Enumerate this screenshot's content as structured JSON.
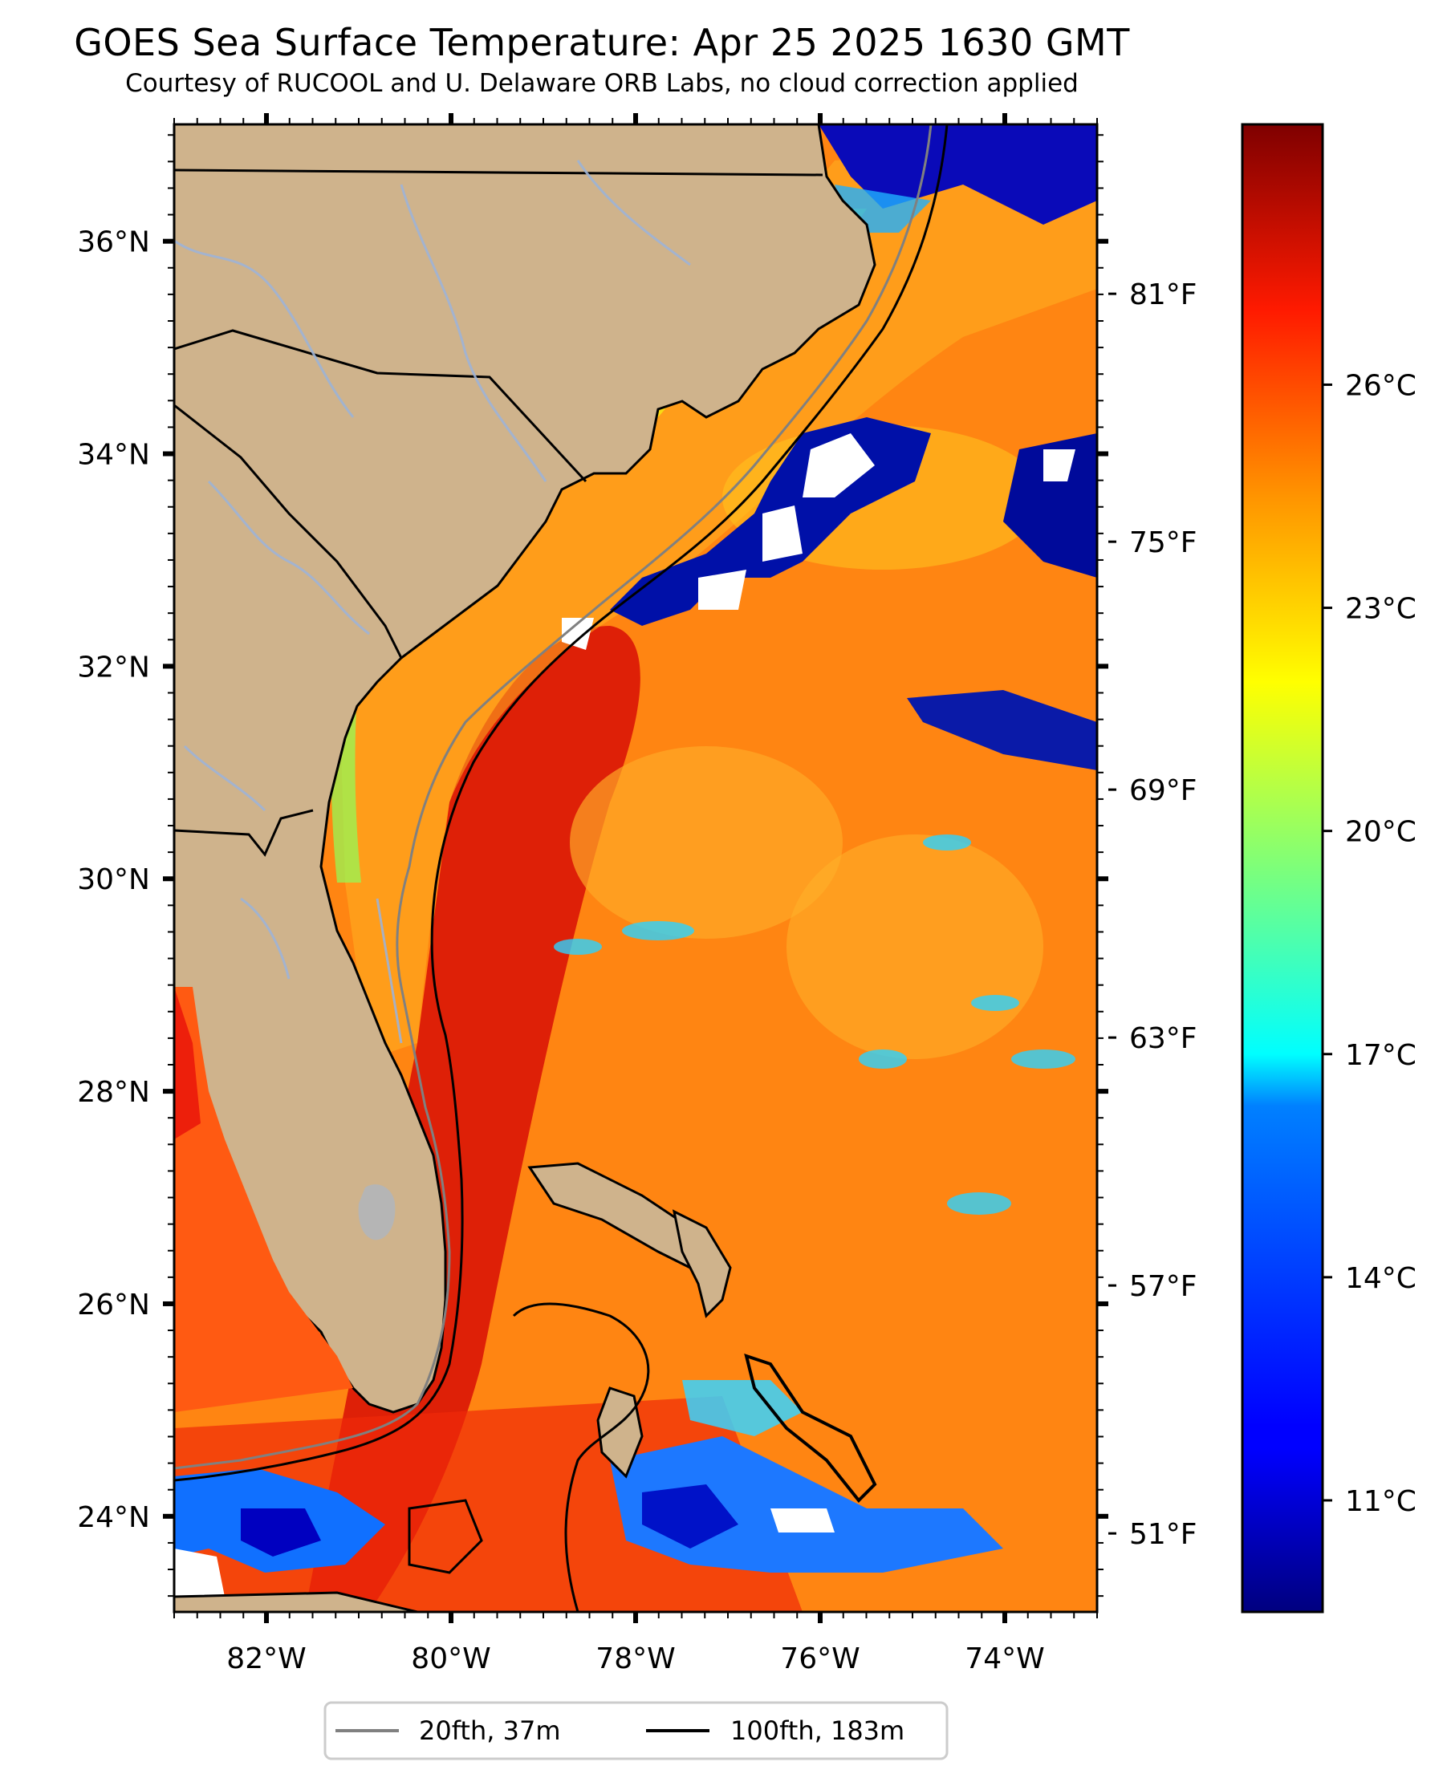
{
  "title": "GOES Sea Surface Temperature: Apr 25 2025 1630 GMT",
  "subtitle": "Courtesy of RUCOOL and U. Delaware ORB Labs, no cloud correction applied",
  "colors": {
    "land": "#cfb38c",
    "land_border": "#000000",
    "rivers": "#9db3d6",
    "isobath_20": "#808080",
    "isobath_100": "#000000",
    "cloud_mask": "#ffffff",
    "lake": "#b5b5b5"
  },
  "map": {
    "lon_range": [
      -83,
      -73
    ],
    "lat_range": [
      23.1,
      37.1
    ],
    "lon_ticks": [
      {
        "value": -82,
        "label": "82°W"
      },
      {
        "value": -80,
        "label": "80°W"
      },
      {
        "value": -78,
        "label": "78°W"
      },
      {
        "value": -76,
        "label": "76°W"
      },
      {
        "value": -74,
        "label": "74°W"
      }
    ],
    "lat_ticks": [
      {
        "value": 24,
        "label": "24°N"
      },
      {
        "value": 26,
        "label": "26°N"
      },
      {
        "value": 28,
        "label": "28°N"
      },
      {
        "value": 30,
        "label": "30°N"
      },
      {
        "value": 32,
        "label": "32°N"
      },
      {
        "value": 34,
        "label": "34°N"
      },
      {
        "value": 36,
        "label": "36°N"
      }
    ]
  },
  "colorbar": {
    "colormap": "jet",
    "range_c": [
      9.5,
      29.5
    ],
    "celsius_ticks": [
      {
        "value": 11,
        "label": "11°C"
      },
      {
        "value": 14,
        "label": "14°C"
      },
      {
        "value": 17,
        "label": "17°C"
      },
      {
        "value": 20,
        "label": "20°C"
      },
      {
        "value": 23,
        "label": "23°C"
      },
      {
        "value": 26,
        "label": "26°C"
      }
    ],
    "fahrenheit_ticks": [
      {
        "value": 51,
        "label": "51°F"
      },
      {
        "value": 57,
        "label": "57°F"
      },
      {
        "value": 63,
        "label": "63°F"
      },
      {
        "value": 69,
        "label": "69°F"
      },
      {
        "value": 75,
        "label": "75°F"
      },
      {
        "value": 81,
        "label": "81°F"
      }
    ]
  },
  "legend": {
    "items": [
      {
        "label": "20fth, 37m",
        "color": "#808080"
      },
      {
        "label": "100fth, 183m",
        "color": "#000000"
      }
    ]
  }
}
